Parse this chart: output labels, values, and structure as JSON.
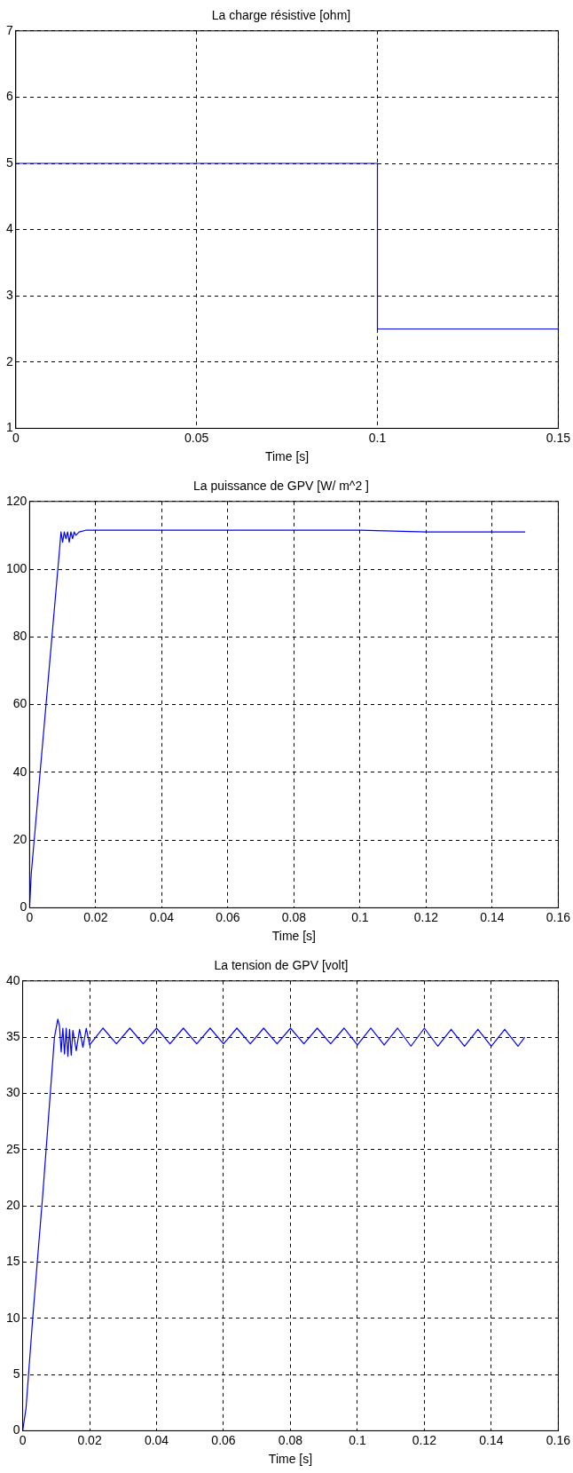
{
  "chart_data": [
    {
      "type": "step",
      "title": "La charge résistive [ohm]",
      "xlabel": "Time [s]",
      "x": [
        0,
        0.1,
        0.15
      ],
      "series": [
        {
          "color": "#0000ff",
          "values": [
            5,
            2.5,
            2.5
          ]
        }
      ],
      "xlim": [
        0,
        0.15
      ],
      "xticks": [
        0,
        0.05,
        0.1,
        0.15
      ],
      "ylim": [
        1,
        7
      ],
      "yticks": [
        1,
        2,
        3,
        4,
        5,
        6,
        7
      ],
      "grid": true,
      "legend": false
    },
    {
      "type": "line",
      "title": "La puissance de GPV [W/ m^2 ]",
      "xlabel": "Time [s]",
      "x": [
        0,
        0.0005,
        0.009,
        0.0095,
        0.01,
        0.0105,
        0.011,
        0.0115,
        0.012,
        0.0125,
        0.013,
        0.0135,
        0.014,
        0.015,
        0.017,
        0.02,
        0.05,
        0.1,
        0.12,
        0.15
      ],
      "series": [
        {
          "color": "#0000ff",
          "values": [
            0,
            10,
            105,
            111,
            108,
            111,
            109,
            111,
            108,
            111,
            109,
            111,
            110,
            111,
            111.5,
            111.5,
            111.5,
            111.5,
            111,
            111
          ]
        }
      ],
      "xlim": [
        0,
        0.16
      ],
      "xticks": [
        0,
        0.02,
        0.04,
        0.06,
        0.08,
        0.1,
        0.12,
        0.14,
        0.16
      ],
      "ylim": [
        0,
        120
      ],
      "yticks": [
        0,
        20,
        40,
        60,
        80,
        100,
        120
      ],
      "grid": true,
      "legend": false
    },
    {
      "type": "line",
      "title": "La tension de GPV [volt]",
      "xlabel": "Time [s]",
      "x": [
        0,
        0.001,
        0.003,
        0.006,
        0.0095,
        0.0105,
        0.011,
        0.0115,
        0.012,
        0.0125,
        0.013,
        0.0135,
        0.014,
        0.0145,
        0.015,
        0.016,
        0.017,
        0.018,
        0.019,
        0.02,
        0.024,
        0.028,
        0.032,
        0.036,
        0.04,
        0.044,
        0.048,
        0.052,
        0.056,
        0.06,
        0.064,
        0.068,
        0.072,
        0.076,
        0.08,
        0.084,
        0.088,
        0.092,
        0.096,
        0.1,
        0.104,
        0.108,
        0.112,
        0.116,
        0.12,
        0.124,
        0.128,
        0.132,
        0.136,
        0.14,
        0.144,
        0.148,
        0.15
      ],
      "series": [
        {
          "color": "#0000ff",
          "values": [
            0,
            2,
            10,
            21,
            35,
            36.6,
            36,
            33.7,
            35.8,
            33.5,
            35.8,
            33.3,
            35.7,
            33.4,
            35.6,
            33.8,
            35.7,
            34.1,
            35.8,
            34.3,
            35.8,
            34.4,
            35.8,
            34.4,
            35.8,
            34.4,
            35.8,
            34.4,
            35.8,
            34.4,
            35.8,
            34.4,
            35.8,
            34.4,
            35.8,
            34.4,
            35.8,
            34.4,
            35.8,
            34.3,
            35.8,
            34.3,
            35.8,
            34.2,
            35.8,
            34.2,
            35.7,
            34.2,
            35.7,
            34.2,
            35.7,
            34.2,
            35
          ]
        }
      ],
      "xlim": [
        0,
        0.16
      ],
      "xticks": [
        0,
        0.02,
        0.04,
        0.06,
        0.08,
        0.1,
        0.12,
        0.14,
        0.16
      ],
      "ylim": [
        0,
        40
      ],
      "yticks": [
        0,
        5,
        10,
        15,
        20,
        25,
        30,
        35,
        40
      ],
      "grid": true,
      "legend": false
    }
  ]
}
